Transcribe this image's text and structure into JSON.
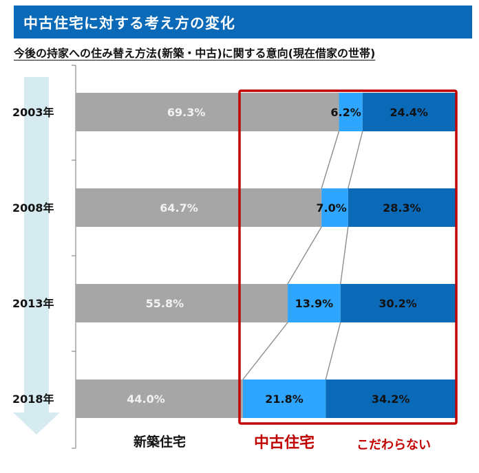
{
  "header": {
    "title": "中古住宅に対する考え方の変化"
  },
  "subtitle": "今後の持家への住み替え方法(新築・中古)に関する意向(現在借家の世帯)",
  "colors": {
    "header_bg": "#0a6ab7",
    "new_build": "#a6a6a6",
    "used_home": "#2ea6ff",
    "no_preference": "#0a6ab7",
    "highlight_box": "#c00000",
    "arrow": "#d6ebf0"
  },
  "chart_data": {
    "type": "bar",
    "stacked": true,
    "orientation": "horizontal",
    "categories": [
      "2003年",
      "2008年",
      "2013年",
      "2018年"
    ],
    "series": [
      {
        "name": "新築住宅",
        "values": [
          69.3,
          64.7,
          55.8,
          44.0
        ]
      },
      {
        "name": "中古住宅",
        "values": [
          6.2,
          7.0,
          13.9,
          21.8
        ]
      },
      {
        "name": "こだわらない",
        "values": [
          24.4,
          28.3,
          30.2,
          34.2
        ]
      }
    ],
    "value_labels": [
      [
        "69.3%",
        "64.7%",
        "55.8%",
        "44.0%"
      ],
      [
        "6.2%",
        "7.0%",
        "13.9%",
        "21.8%"
      ],
      [
        "24.4%",
        "28.3%",
        "30.2%",
        "34.2%"
      ]
    ],
    "xlim": [
      0,
      100
    ],
    "legend": "below"
  }
}
